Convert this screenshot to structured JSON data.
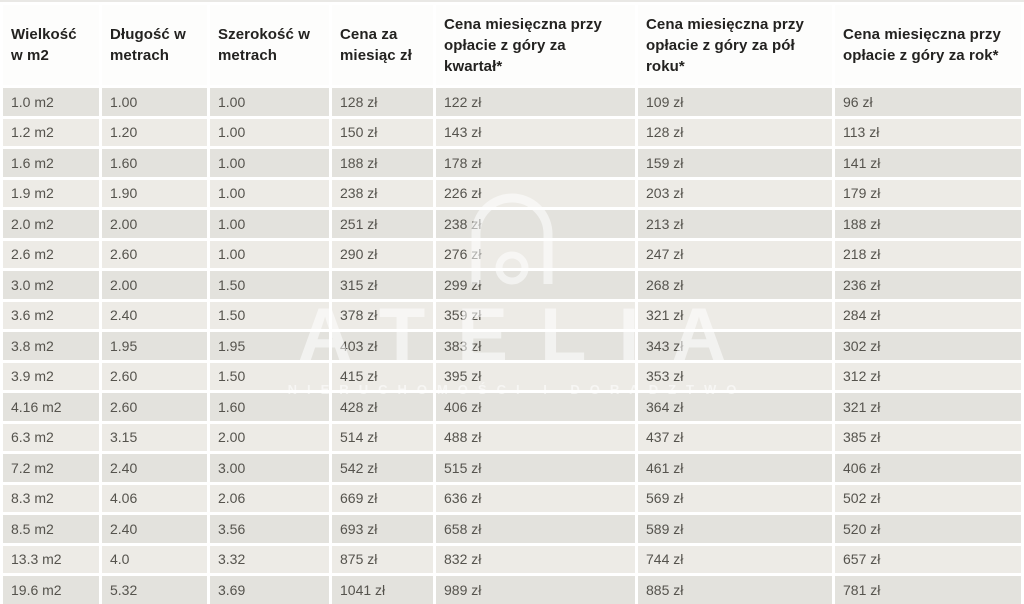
{
  "chart_data": {
    "type": "table",
    "columns": [
      "Wielkość w m2",
      "Długość w metrach",
      "Szerokość w metrach",
      "Cena za miesiąc zł",
      "Cena miesięczna przy opłacie z góry za kwartał*",
      "Cena miesięczna przy opłacie z góry za pół roku*",
      "Cena miesięczna przy opłacie z góry za rok*"
    ],
    "rows": [
      [
        "1.0 m2",
        "1.00",
        "1.00",
        "128 zł",
        "122 zł",
        "109 zł",
        "96 zł"
      ],
      [
        "1.2 m2",
        "1.20",
        "1.00",
        "150 zł",
        "143 zł",
        "128 zł",
        "113 zł"
      ],
      [
        "1.6 m2",
        "1.60",
        "1.00",
        "188 zł",
        "178 zł",
        "159 zł",
        "141 zł"
      ],
      [
        "1.9 m2",
        "1.90",
        "1.00",
        "238 zł",
        "226 zł",
        "203 zł",
        "179 zł"
      ],
      [
        "2.0 m2",
        "2.00",
        "1.00",
        "251 zł",
        "238 zł",
        "213 zł",
        "188 zł"
      ],
      [
        "2.6 m2",
        "2.60",
        "1.00",
        "290 zł",
        "276 zł",
        "247 zł",
        "218 zł"
      ],
      [
        "3.0 m2",
        "2.00",
        "1.50",
        "315 zł",
        "299 zł",
        "268 zł",
        "236 zł"
      ],
      [
        "3.6 m2",
        "2.40",
        "1.50",
        "378 zł",
        "359 zł",
        "321 zł",
        "284 zł"
      ],
      [
        "3.8 m2",
        "1.95",
        "1.95",
        "403 zł",
        "383 zł",
        "343 zł",
        "302 zł"
      ],
      [
        "3.9 m2",
        "2.60",
        "1.50",
        "415 zł",
        "395 zł",
        "353 zł",
        "312 zł"
      ],
      [
        "4.16 m2",
        "2.60",
        "1.60",
        "428 zł",
        "406 zł",
        "364 zł",
        "321 zł"
      ],
      [
        "6.3 m2",
        "3.15",
        "2.00",
        "514 zł",
        "488 zł",
        "437 zł",
        "385 zł"
      ],
      [
        "7.2 m2",
        "2.40",
        "3.00",
        "542 zł",
        "515 zł",
        "461 zł",
        "406 zł"
      ],
      [
        "8.3 m2",
        "4.06",
        "2.06",
        "669 zł",
        "636 zł",
        "569 zł",
        "502 zł"
      ],
      [
        "8.5 m2",
        "2.40",
        "3.56",
        "693 zł",
        "658 zł",
        "589 zł",
        "520 zł"
      ],
      [
        "13.3 m2",
        "4.0",
        "3.32",
        "875 zł",
        "832 zł",
        "744 zł",
        "657 zł"
      ],
      [
        "19.6 m2",
        "5.32",
        "3.69",
        "1041 zł",
        "989 zł",
        "885 zł",
        "781 zł"
      ]
    ]
  },
  "watermark": {
    "brand": "ATELIA",
    "tagline": "NIERUCHOMOŚCI I DORADZTWO",
    "logo_icon": "arch-ring-logo"
  },
  "colors": {
    "row_odd": "#e3e2dd",
    "row_even": "#edebe6",
    "header_bg": "#fdfdfc",
    "header_text": "#232220",
    "cell_text": "#55534d",
    "separator": "#ffffff",
    "watermark": "rgba(255,255,255,0.55)"
  }
}
